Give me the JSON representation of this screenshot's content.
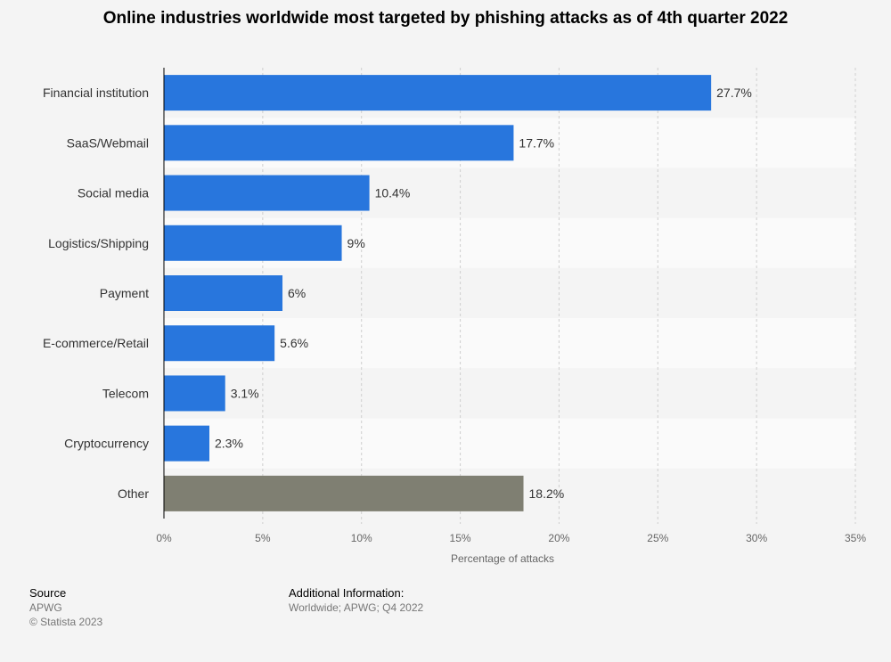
{
  "chart_data": {
    "type": "bar",
    "orientation": "horizontal",
    "title": "Online industries worldwide most targeted by phishing attacks as of 4th quarter 2022",
    "categories": [
      "Financial institution",
      "SaaS/Webmail",
      "Social media",
      "Logistics/Shipping",
      "Payment",
      "E-commerce/Retail",
      "Telecom",
      "Cryptocurrency",
      "Other"
    ],
    "values": [
      27.7,
      17.7,
      10.4,
      9,
      6,
      5.6,
      3.1,
      2.3,
      18.2
    ],
    "value_labels": [
      "27.7%",
      "17.7%",
      "10.4%",
      "9%",
      "6%",
      "5.6%",
      "3.1%",
      "2.3%",
      "18.2%"
    ],
    "bar_colors": [
      "#2876dd",
      "#2876dd",
      "#2876dd",
      "#2876dd",
      "#2876dd",
      "#2876dd",
      "#2876dd",
      "#2876dd",
      "#7f7f72"
    ],
    "xlabel": "Percentage of attacks",
    "ylabel": "",
    "xlim": [
      0,
      35
    ],
    "xticks": [
      0,
      5,
      10,
      15,
      20,
      25,
      30,
      35
    ],
    "xtick_labels": [
      "0%",
      "5%",
      "10%",
      "15%",
      "20%",
      "25%",
      "30%",
      "35%"
    ],
    "grid": true
  },
  "footer": {
    "source_label": "Source",
    "source_name": "APWG",
    "copyright": "© Statista 2023",
    "info_label": "Additional Information:",
    "info_text": "Worldwide; APWG; Q4 2022"
  }
}
